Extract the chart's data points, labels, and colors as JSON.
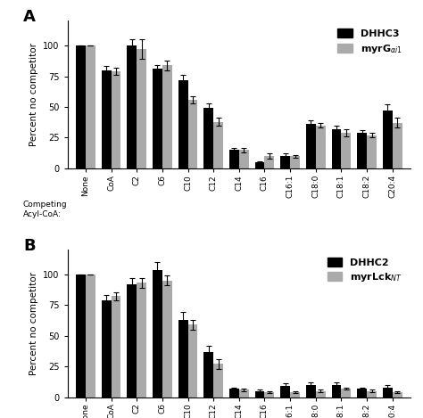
{
  "categories": [
    "None",
    "CoA",
    "C2",
    "C6",
    "C10",
    "C12",
    "C14",
    "C16",
    "C16:1",
    "C18:0",
    "C18:1",
    "C18:2",
    "C20:4"
  ],
  "panel_A": {
    "label": "A",
    "black_label": "DHHC3",
    "gray_label": "myrG$_{\\alpha i1}$",
    "black_values": [
      100,
      80,
      100,
      81,
      72,
      49,
      15,
      5,
      10,
      36,
      32,
      29,
      47
    ],
    "gray_values": [
      100,
      79,
      97,
      84,
      56,
      38,
      15,
      10,
      10,
      35,
      29,
      27,
      37
    ],
    "black_errors": [
      0,
      3,
      5,
      3,
      4,
      4,
      2,
      1,
      2,
      3,
      3,
      2,
      5
    ],
    "gray_errors": [
      0,
      3,
      8,
      4,
      3,
      3,
      2,
      2,
      1,
      2,
      3,
      2,
      4
    ]
  },
  "panel_B": {
    "label": "B",
    "black_label": "DHHC2",
    "gray_label": "myrLck$_{NT}$",
    "black_values": [
      100,
      79,
      92,
      103,
      63,
      37,
      7,
      5,
      9,
      10,
      10,
      7,
      8
    ],
    "gray_values": [
      100,
      82,
      93,
      95,
      59,
      27,
      6,
      4,
      4,
      5,
      7,
      5,
      4
    ],
    "black_errors": [
      0,
      4,
      5,
      7,
      6,
      5,
      1,
      1,
      2,
      2,
      2,
      1,
      2
    ],
    "gray_errors": [
      0,
      3,
      4,
      4,
      4,
      4,
      1,
      1,
      1,
      1,
      1,
      1,
      1
    ]
  },
  "black_color": "#000000",
  "gray_color": "#aaaaaa",
  "ylabel": "Percent no competitor",
  "ylim": [
    0,
    120
  ],
  "yticks": [
    0,
    25,
    50,
    75,
    100
  ],
  "bar_width": 0.38
}
